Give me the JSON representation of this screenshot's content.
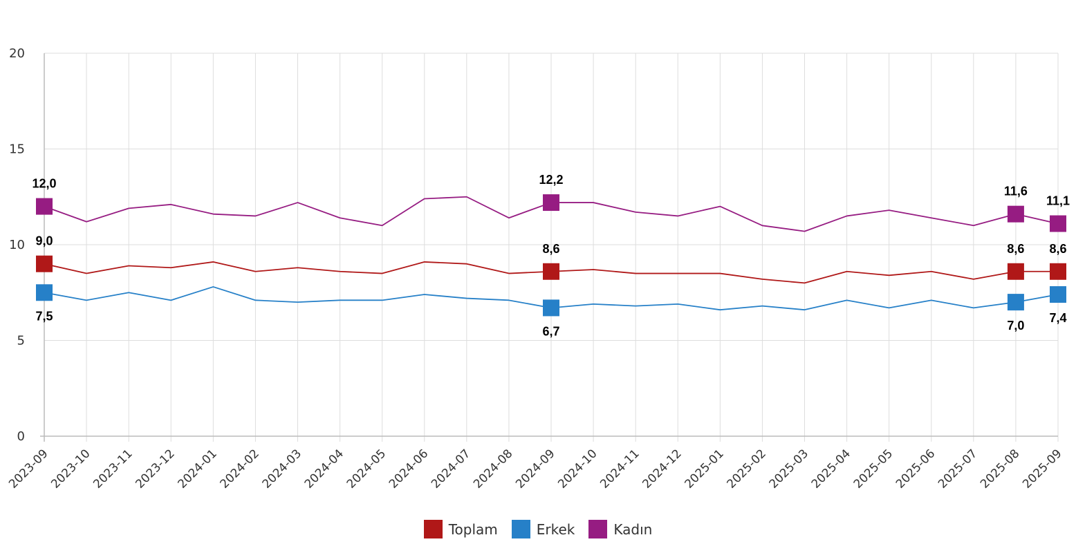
{
  "chart_data": {
    "type": "line",
    "categories": [
      "2023-09",
      "2023-10",
      "2023-11",
      "2023-12",
      "2024-01",
      "2024-02",
      "2024-03",
      "2024-04",
      "2024-05",
      "2024-06",
      "2024-07",
      "2024-08",
      "2024-09",
      "2024-10",
      "2024-11",
      "2024-12",
      "2025-01",
      "2025-02",
      "2025-03",
      "2025-04",
      "2025-05",
      "2025-06",
      "2025-07",
      "2025-08",
      "2025-09"
    ],
    "ylim": [
      0,
      20
    ],
    "yticks": [
      "0",
      "5",
      "10",
      "15",
      "20"
    ],
    "grid": true,
    "legend_position": "bottom",
    "series": [
      {
        "name": "Toplam",
        "color": "#b01818",
        "values": [
          9.0,
          8.5,
          8.9,
          8.8,
          9.1,
          8.6,
          8.8,
          8.6,
          8.5,
          9.1,
          9.0,
          8.5,
          8.6,
          8.7,
          8.5,
          8.5,
          8.5,
          8.2,
          8.0,
          8.6,
          8.4,
          8.6,
          8.2,
          8.6,
          8.6
        ]
      },
      {
        "name": "Erkek",
        "color": "#2680c8",
        "values": [
          7.5,
          7.1,
          7.5,
          7.1,
          7.8,
          7.1,
          7.0,
          7.1,
          7.1,
          7.4,
          7.2,
          7.1,
          6.7,
          6.9,
          6.8,
          6.9,
          6.6,
          6.8,
          6.6,
          7.1,
          6.7,
          7.1,
          6.7,
          7.0,
          7.4
        ]
      },
      {
        "name": "Kadın",
        "color": "#961c82",
        "values": [
          12.0,
          11.2,
          11.9,
          12.1,
          11.6,
          11.5,
          12.2,
          11.4,
          11.0,
          12.4,
          12.5,
          11.4,
          12.2,
          12.2,
          11.7,
          11.5,
          12.0,
          11.0,
          10.7,
          11.5,
          11.8,
          11.4,
          11.0,
          11.6,
          11.1
        ]
      }
    ],
    "data_labels": [
      {
        "series": 0,
        "index": 0,
        "text": "9,0",
        "pos": "above"
      },
      {
        "series": 0,
        "index": 12,
        "text": "8,6",
        "pos": "above"
      },
      {
        "series": 0,
        "index": 23,
        "text": "8,6",
        "pos": "above"
      },
      {
        "series": 0,
        "index": 24,
        "text": "8,6",
        "pos": "above"
      },
      {
        "series": 1,
        "index": 0,
        "text": "7,5",
        "pos": "below"
      },
      {
        "series": 1,
        "index": 12,
        "text": "6,7",
        "pos": "below"
      },
      {
        "series": 1,
        "index": 23,
        "text": "7,0",
        "pos": "below"
      },
      {
        "series": 1,
        "index": 24,
        "text": "7,4",
        "pos": "below"
      },
      {
        "series": 2,
        "index": 0,
        "text": "12,0",
        "pos": "above"
      },
      {
        "series": 2,
        "index": 12,
        "text": "12,2",
        "pos": "above"
      },
      {
        "series": 2,
        "index": 23,
        "text": "11,6",
        "pos": "above"
      },
      {
        "series": 2,
        "index": 24,
        "text": "11,1",
        "pos": "above"
      }
    ]
  }
}
